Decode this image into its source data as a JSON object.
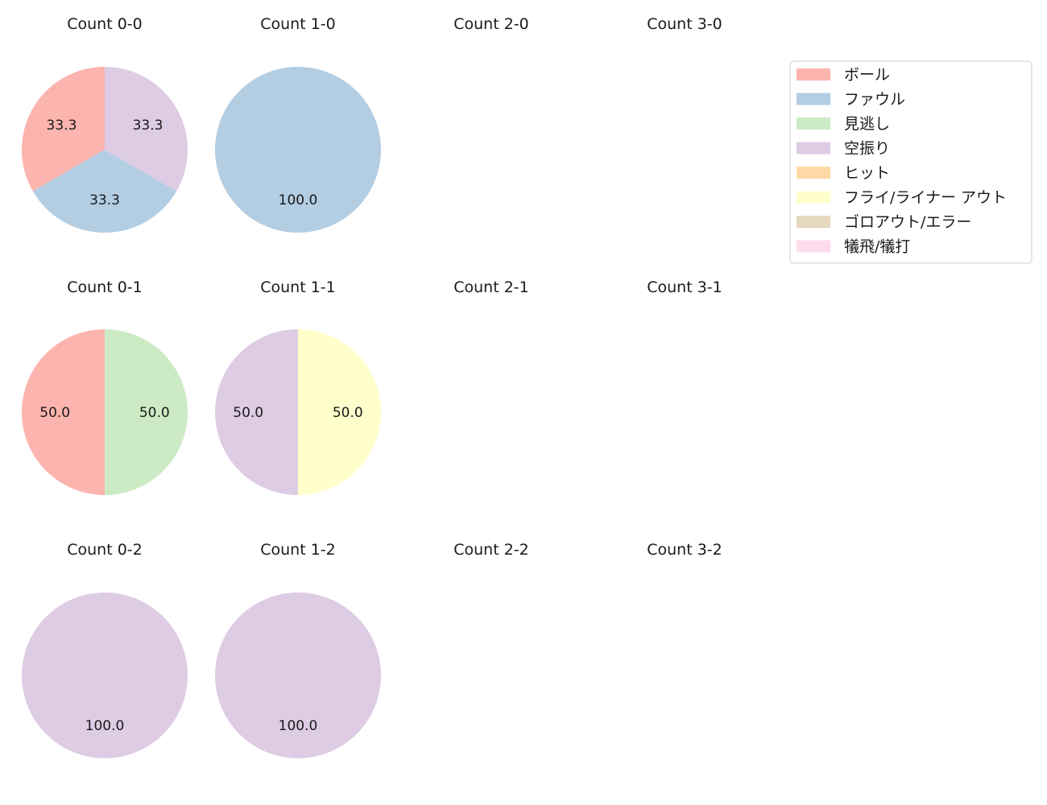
{
  "legend": {
    "items": [
      {
        "label": "ボール",
        "color": "#fbb4ae"
      },
      {
        "label": "ファウル",
        "color": "#b3cde3"
      },
      {
        "label": "見逃し",
        "color": "#ccebc5"
      },
      {
        "label": "空振り",
        "color": "#decbe4"
      },
      {
        "label": "ヒット",
        "color": "#fed9a6"
      },
      {
        "label": "フライ/ライナー アウト",
        "color": "#ffffcc"
      },
      {
        "label": "ゴロアウト/エラー",
        "color": "#e5d8bd"
      },
      {
        "label": "犠飛/犠打",
        "color": "#fddaec"
      }
    ]
  },
  "chart_data": [
    {
      "type": "pie",
      "title": "Count 0-0",
      "categories": [
        "ボール",
        "ファウル",
        "空振り"
      ],
      "values": [
        33.3,
        33.3,
        33.3
      ],
      "labels": [
        "33.3",
        "33.3",
        "33.3"
      ]
    },
    {
      "type": "pie",
      "title": "Count 1-0",
      "categories": [
        "ファウル"
      ],
      "values": [
        100.0
      ],
      "labels": [
        "100.0"
      ]
    },
    {
      "type": "pie",
      "title": "Count 2-0",
      "categories": [],
      "values": [],
      "labels": []
    },
    {
      "type": "pie",
      "title": "Count 3-0",
      "categories": [],
      "values": [],
      "labels": []
    },
    {
      "type": "pie",
      "title": "Count 0-1",
      "categories": [
        "ボール",
        "見逃し"
      ],
      "values": [
        50.0,
        50.0
      ],
      "labels": [
        "50.0",
        "50.0"
      ]
    },
    {
      "type": "pie",
      "title": "Count 1-1",
      "categories": [
        "空振り",
        "フライ/ライナー アウト"
      ],
      "values": [
        50.0,
        50.0
      ],
      "labels": [
        "50.0",
        "50.0"
      ]
    },
    {
      "type": "pie",
      "title": "Count 2-1",
      "categories": [],
      "values": [],
      "labels": []
    },
    {
      "type": "pie",
      "title": "Count 3-1",
      "categories": [],
      "values": [],
      "labels": []
    },
    {
      "type": "pie",
      "title": "Count 0-2",
      "categories": [
        "空振り"
      ],
      "values": [
        100.0
      ],
      "labels": [
        "100.0"
      ]
    },
    {
      "type": "pie",
      "title": "Count 1-2",
      "categories": [
        "空振り"
      ],
      "values": [
        100.0
      ],
      "labels": [
        "100.0"
      ]
    },
    {
      "type": "pie",
      "title": "Count 2-2",
      "categories": [],
      "values": [],
      "labels": []
    },
    {
      "type": "pie",
      "title": "Count 3-2",
      "categories": [],
      "values": [],
      "labels": []
    }
  ]
}
